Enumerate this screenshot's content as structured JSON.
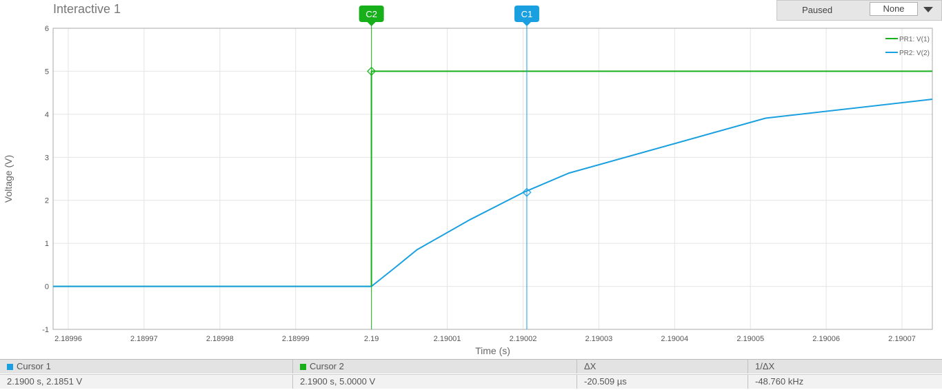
{
  "window": {
    "title": "Interactive 1"
  },
  "controls": {
    "status": "Paused",
    "trigger_value": "None"
  },
  "colors": {
    "pr1": "#18b01a",
    "pr2": "#1aa0e0"
  },
  "chart_data": {
    "type": "line",
    "xlabel": "Time (s)",
    "ylabel": "Voltage (V)",
    "xlim": [
      2.189958,
      2.190074
    ],
    "ylim": [
      -1,
      6
    ],
    "x_ticks": [
      2.18996,
      2.18997,
      2.18998,
      2.18999,
      2.19,
      2.19001,
      2.19002,
      2.19003,
      2.19004,
      2.19005,
      2.19006,
      2.19007
    ],
    "x_tick_labels": [
      "2.18996",
      "2.18997",
      "2.18998",
      "2.18999",
      "2.19",
      "2.19001",
      "2.19002",
      "2.19003",
      "2.19004",
      "2.19005",
      "2.19006",
      "2.19007"
    ],
    "y_ticks": [
      -1,
      0,
      1,
      2,
      3,
      4,
      5,
      6
    ],
    "y_tick_labels": [
      "-1",
      "0",
      "1",
      "2",
      "3",
      "4",
      "5",
      "6"
    ],
    "grid": true,
    "legend_position": "top-right",
    "series": [
      {
        "name": "PR1: V(1)",
        "color": "#18b01a",
        "x": [
          2.189958,
          2.19,
          2.19,
          2.190074
        ],
        "y": [
          0,
          0,
          5,
          5
        ]
      },
      {
        "name": "PR2: V(2)",
        "color": "#1aa0e0",
        "x": [
          2.189958,
          2.19,
          2.190003,
          2.190006,
          2.190013,
          2.19002,
          2.190026,
          2.190052,
          2.190074
        ],
        "y": [
          0,
          0,
          0.42,
          0.85,
          1.55,
          2.18,
          2.63,
          3.91,
          4.35
        ]
      }
    ],
    "cursors": [
      {
        "label": "C2",
        "x": 2.19,
        "color": "#18b01a",
        "marker_y": 5.0
      },
      {
        "label": "C1",
        "x": 2.1900205,
        "color": "#1aa0e0",
        "marker_y": 2.1851
      }
    ]
  },
  "readout": {
    "headers": [
      "Cursor 1",
      "Cursor 2",
      "ΔX",
      "1/ΔX"
    ],
    "values": [
      "2.1900 s, 2.1851 V",
      "2.1900 s, 5.0000 V",
      "-20.509 µs",
      "-48.760 kHz"
    ]
  }
}
